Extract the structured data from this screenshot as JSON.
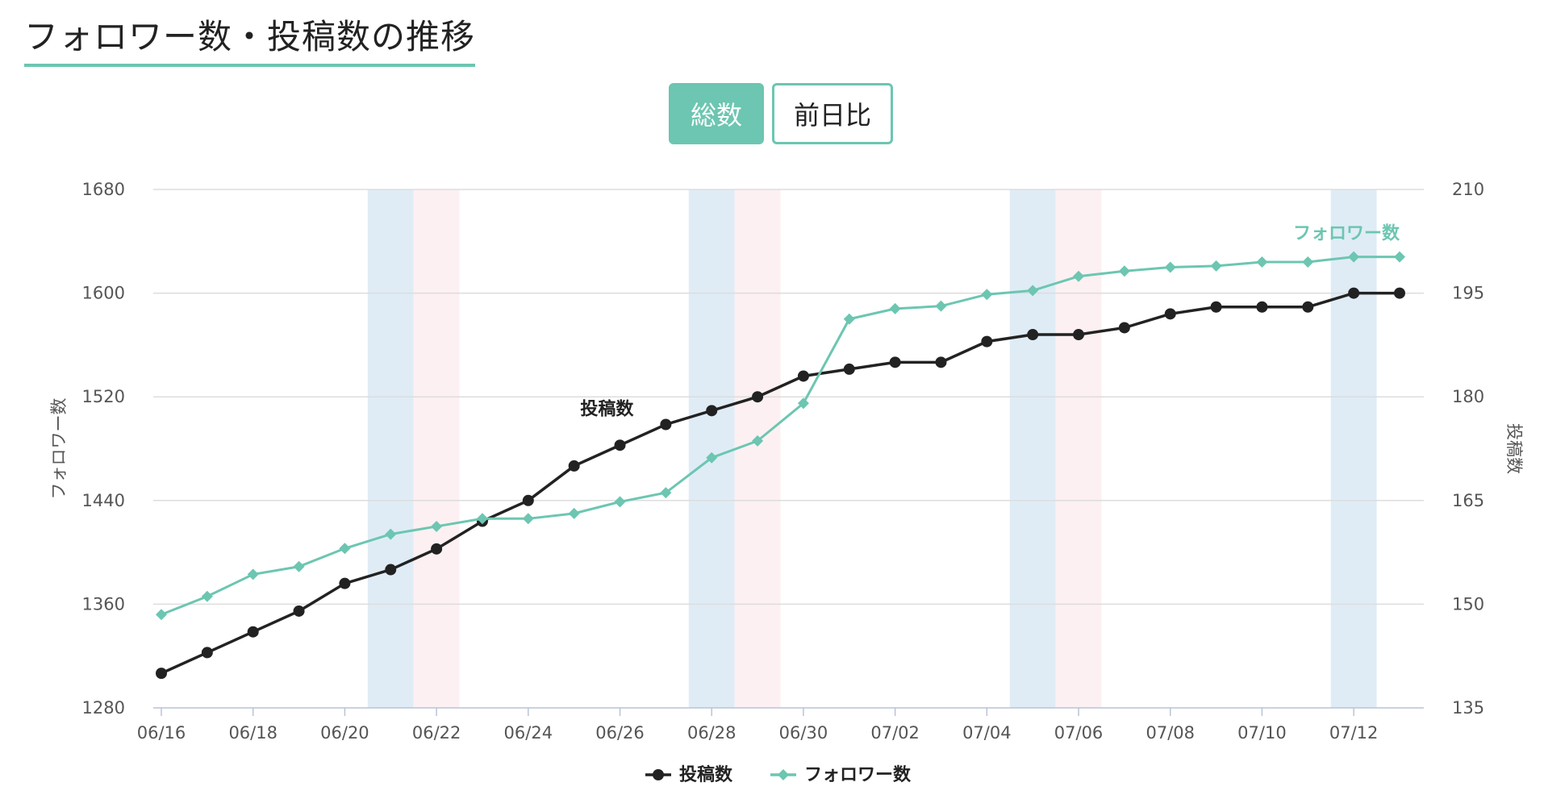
{
  "header": {
    "title": "フォロワー数・投稿数の推移"
  },
  "toggle": {
    "total_label": "総数",
    "diff_label": "前日比"
  },
  "colors": {
    "accent": "#6cc6b1",
    "posts": "#222222",
    "saturday": "#dfecf6",
    "sunday": "#fcf0f2",
    "grid": "#dddddd"
  },
  "chart_data": {
    "type": "line",
    "title": "",
    "x": [
      "06/16",
      "06/17",
      "06/18",
      "06/19",
      "06/20",
      "06/21",
      "06/22",
      "06/23",
      "06/24",
      "06/25",
      "06/26",
      "06/27",
      "06/28",
      "06/29",
      "06/30",
      "07/01",
      "07/02",
      "07/03",
      "07/04",
      "07/05",
      "07/06",
      "07/07",
      "07/08",
      "07/09",
      "07/10",
      "07/11",
      "07/12",
      "07/13"
    ],
    "x_tick_labels": [
      "06/16",
      "06/18",
      "06/20",
      "06/22",
      "06/24",
      "06/26",
      "06/28",
      "06/30",
      "07/02",
      "07/04",
      "07/06",
      "07/08",
      "07/10",
      "07/12"
    ],
    "y_left": {
      "label": "フォロワー数",
      "range": [
        1280,
        1680
      ],
      "ticks": [
        1280,
        1360,
        1440,
        1520,
        1600,
        1680
      ]
    },
    "y_right": {
      "label": "投稿数",
      "range": [
        135,
        210
      ],
      "ticks": [
        135,
        150,
        165,
        180,
        195,
        210
      ]
    },
    "grid": true,
    "legend_position": "bottom-center",
    "series": [
      {
        "name": "投稿数",
        "axis": "right",
        "marker": "circle",
        "values": [
          140,
          143,
          146,
          149,
          153,
          155,
          158,
          162,
          165,
          170,
          173,
          176,
          178,
          180,
          183,
          184,
          185,
          185,
          188,
          189,
          189,
          190,
          192,
          193,
          193,
          193,
          195,
          195
        ]
      },
      {
        "name": "フォロワー数",
        "axis": "left",
        "marker": "diamond",
        "values": [
          1352,
          1366,
          1383,
          1389,
          1403,
          1414,
          1420,
          1426,
          1426,
          1430,
          1439,
          1446,
          1473,
          1486,
          1515,
          1580,
          1588,
          1590,
          1599,
          1602,
          1613,
          1617,
          1620,
          1621,
          1624,
          1624,
          1628,
          1628
        ]
      }
    ],
    "shaded_days": {
      "saturday": [
        "06/21",
        "06/28",
        "07/05",
        "07/12"
      ],
      "sunday": [
        "06/22",
        "06/29",
        "07/06"
      ]
    },
    "series_labels": [
      {
        "series": "投稿数",
        "text": "投稿数"
      },
      {
        "series": "フォロワー数",
        "text": "フォロワー数"
      }
    ]
  }
}
